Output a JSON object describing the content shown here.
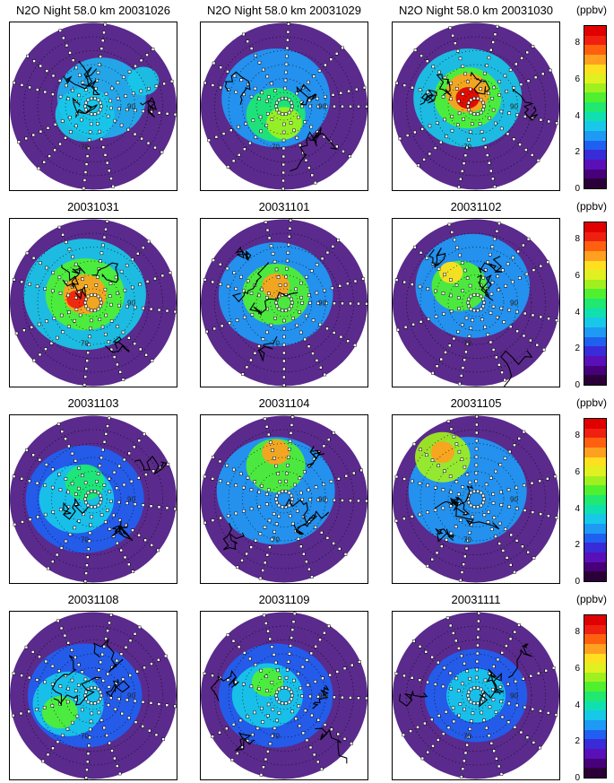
{
  "figure": {
    "panel_titles": [
      "N2O Night  58.0 km 20031026",
      "N2O Night  58.0 km 20031029",
      "N2O Night  58.0 km 20031030",
      "20031031",
      "20031101",
      "20031102",
      "20031103",
      "20031104",
      "20031105",
      "20031108",
      "20031109",
      "20031111"
    ],
    "colorbar": {
      "unit": "(ppbv)",
      "ticks": [
        "0",
        "2",
        "4",
        "6",
        "8"
      ],
      "range": [
        0,
        9
      ],
      "colors": [
        "#2b0038",
        "#47007a",
        "#5a10b8",
        "#3a2bd8",
        "#2060f0",
        "#1e9af5",
        "#18c8e8",
        "#10e0b0",
        "#20e870",
        "#50f030",
        "#a0f020",
        "#e0f020",
        "#ffe020",
        "#ffa020",
        "#ff6010",
        "#f02010",
        "#e00000"
      ]
    },
    "map_labels": [
      "70",
      "90"
    ]
  }
}
